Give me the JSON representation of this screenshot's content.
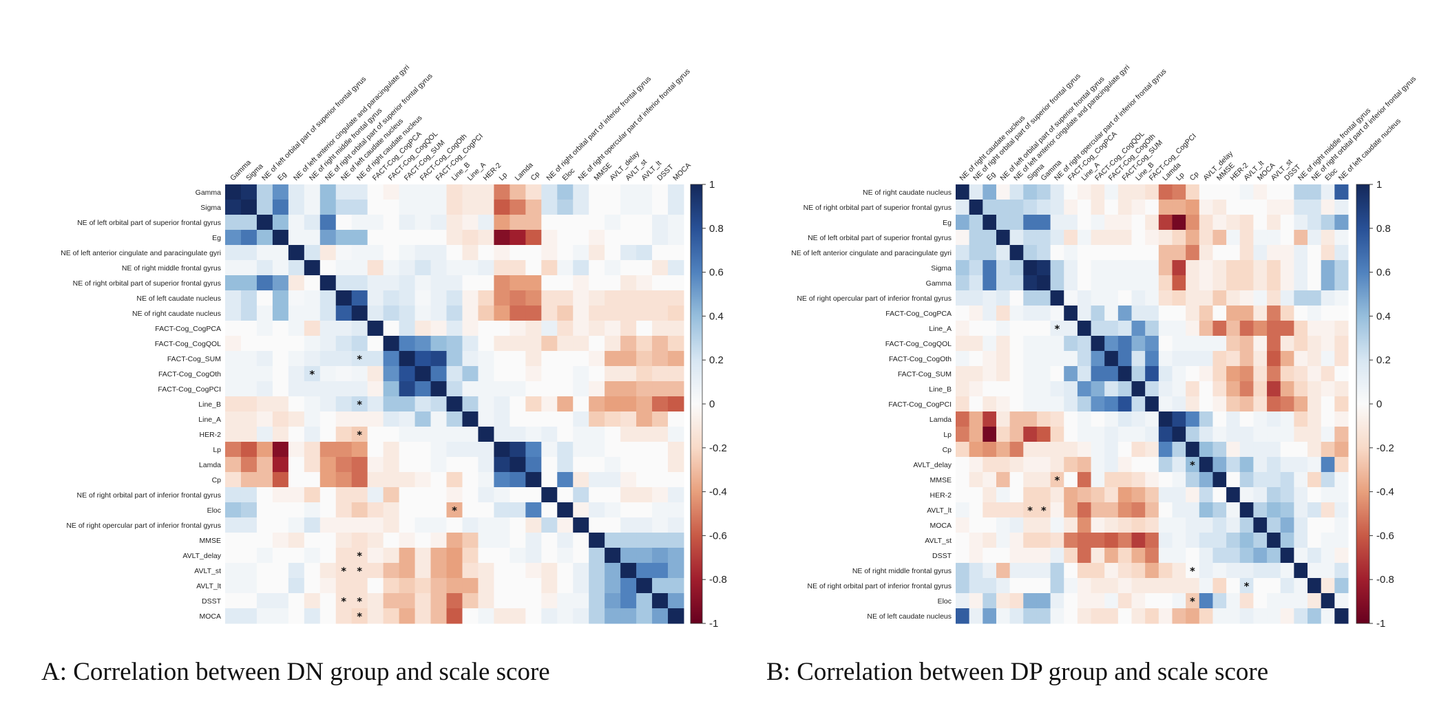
{
  "chart_data": [
    {
      "type": "heatmap",
      "title": "A: Correlation between DN group and scale score",
      "value_range": [
        -1,
        1
      ],
      "colorbar_ticks": [
        "1",
        "0.8",
        "0.6",
        "0.4",
        "0.2",
        "0",
        "-0.2",
        "-0.4",
        "-0.6",
        "-0.8",
        "-1"
      ],
      "labels": [
        "Gamma",
        "Sigma",
        "NE of left orbital part of superior frontal gyrus",
        "Eg",
        "NE of left anterior cingulate and paracingulate gyri",
        "NE of right middle frontal gyrus",
        "NE of right orbital part of superior frontal gyrus",
        "NE of left caudate nucleus",
        "NE of  right caudate nucleus",
        "FACT-Cog_CogPCA",
        "FACT-Cog_CogQOL",
        "FACT-Cog_SUM",
        "FACT-Cog_CogOth",
        "FACT-Cog_CogPCI",
        "Line_B",
        "Line_A",
        "HER-2",
        "Lp",
        "Lamda",
        "Cp",
        "NE of right orbital part of inferior frontal gyrus",
        "Eloc",
        "NE of right opercular part of inferior frontal gyrus",
        "MMSE",
        "AVLT_delay",
        "AVLT_st",
        "AVLT_lt",
        "DSST",
        "MOCA"
      ],
      "lower_triangle": [
        [],
        [
          0.95
        ],
        [
          0.3,
          0.3
        ],
        [
          0.55,
          0.65,
          0.4
        ],
        [
          0.15,
          0.15,
          0.05,
          0.05
        ],
        [
          0.05,
          0.05,
          0.15,
          0.05,
          0.2
        ],
        [
          0.4,
          0.4,
          0.65,
          0.5,
          -0.1,
          0
        ],
        [
          0.15,
          0.25,
          0,
          0.4,
          0.03,
          0.05,
          0.2
        ],
        [
          0.15,
          0.25,
          0.05,
          0.4,
          0.05,
          0.05,
          0.2,
          0.75
        ],
        [
          0,
          0,
          0.05,
          0,
          0.05,
          -0.15,
          0.1,
          0.1,
          0.15
        ],
        [
          -0.05,
          0,
          0,
          0,
          0,
          0.05,
          0.1,
          0.2,
          0.25,
          0
        ],
        [
          0.05,
          0.05,
          0.1,
          0,
          0.05,
          0.1,
          0.15,
          0.15,
          0.2,
          0.2,
          0.6
        ],
        [
          0.05,
          0.05,
          0.05,
          0,
          0.1,
          0.2,
          0.05,
          0.03,
          0.05,
          -0.1,
          0.55,
          0.8
        ],
        [
          0.05,
          0.05,
          0.1,
          0,
          0.1,
          0.1,
          0.1,
          0.1,
          0.1,
          -0.05,
          0.4,
          0.85,
          0.65
        ],
        [
          -0.15,
          -0.15,
          -0.1,
          -0.1,
          0,
          0.05,
          0.1,
          0.2,
          0.25,
          0.15,
          0.35,
          0.35,
          0.2,
          0.25
        ],
        [
          -0.1,
          -0.1,
          -0.05,
          -0.15,
          -0.1,
          0.05,
          0,
          -0.05,
          -0.05,
          -0.05,
          0.15,
          0.1,
          0.35,
          0.05,
          0.3
        ],
        [
          -0.1,
          -0.1,
          0.1,
          -0.1,
          0,
          0.1,
          0,
          -0.2,
          -0.25,
          0,
          0,
          0.05,
          0.05,
          0.05,
          0.05,
          0.05
        ],
        [
          -0.5,
          -0.6,
          -0.4,
          -0.9,
          -0.05,
          -0.15,
          -0.45,
          -0.45,
          -0.4,
          0,
          -0.1,
          0,
          0,
          0.05,
          0.1,
          0.1,
          0.1
        ],
        [
          -0.3,
          -0.5,
          -0.3,
          -0.8,
          0,
          -0.15,
          -0.4,
          -0.5,
          -0.55,
          -0.05,
          -0.1,
          0,
          0,
          0.05,
          0,
          0,
          0.1,
          0.9
        ],
        [
          -0.15,
          -0.3,
          -0.3,
          -0.6,
          0,
          0,
          -0.4,
          -0.45,
          -0.55,
          -0.1,
          -0.1,
          -0.1,
          -0.05,
          0,
          -0.2,
          0,
          0.05,
          0.6,
          0.65
        ],
        [
          0.2,
          0.2,
          0,
          -0.05,
          -0.05,
          -0.2,
          0,
          -0.15,
          -0.15,
          0.1,
          -0.25,
          0,
          0,
          0,
          -0.05,
          0,
          0.1,
          0.05,
          0,
          0
        ],
        [
          0.35,
          0.3,
          0,
          0,
          0,
          0.05,
          0,
          -0.15,
          -0.25,
          -0.15,
          -0.1,
          0,
          0,
          0,
          -0.35,
          0,
          0,
          0.2,
          0.2,
          0.6,
          0
        ],
        [
          0.15,
          0.15,
          0,
          0,
          0.05,
          0.2,
          -0.05,
          -0.05,
          -0.05,
          -0.05,
          -0.1,
          0,
          0.05,
          0.05,
          0,
          0.1,
          0.05,
          0.05,
          0,
          -0.1,
          0.25,
          -0.05
        ],
        [
          0,
          0,
          0,
          -0.05,
          -0.1,
          0,
          0,
          -0.1,
          -0.15,
          -0.1,
          0,
          -0.05,
          0,
          -0.05,
          -0.35,
          -0.25,
          0.05,
          0.05,
          0,
          0.1,
          0,
          0.1,
          0
        ],
        [
          0,
          0,
          0.05,
          0,
          0,
          0.05,
          0,
          -0.15,
          -0.15,
          -0.05,
          -0.1,
          -0.35,
          -0.1,
          -0.35,
          -0.4,
          -0.2,
          0,
          0,
          0.05,
          0.1,
          0,
          0.05,
          0,
          0.3
        ],
        [
          0.05,
          0.05,
          0,
          0,
          0.15,
          0,
          -0.1,
          -0.15,
          -0.15,
          -0.15,
          -0.3,
          -0.35,
          -0.1,
          -0.35,
          -0.4,
          -0.15,
          -0.1,
          0,
          0,
          -0.05,
          -0.1,
          0,
          0.1,
          0.3,
          0.45
        ],
        [
          0.05,
          0.05,
          0,
          0,
          0.2,
          0,
          -0.05,
          -0.15,
          -0.15,
          0,
          -0.2,
          -0.25,
          -0.2,
          -0.3,
          -0.35,
          -0.35,
          -0.1,
          0,
          0,
          0,
          -0.1,
          0,
          0.1,
          0.3,
          0.45,
          0.6
        ],
        [
          0,
          0,
          0.1,
          0.1,
          0,
          -0.1,
          0,
          -0.15,
          -0.15,
          -0.1,
          -0.3,
          -0.3,
          -0.15,
          -0.3,
          -0.55,
          -0.25,
          -0.1,
          0,
          0,
          0,
          -0.05,
          0.05,
          0.05,
          0.3,
          0.5,
          0.6,
          0.35
        ],
        [
          0.15,
          0.15,
          0.05,
          0.05,
          0,
          0.15,
          0,
          -0.15,
          -0.2,
          -0.1,
          -0.2,
          -0.35,
          -0.15,
          -0.3,
          -0.6,
          0,
          0.05,
          -0.1,
          -0.1,
          0,
          0.1,
          0.05,
          0.1,
          0.3,
          0.45,
          0.45,
          0.35,
          0.5
        ]
      ],
      "significance_marks": [
        [
          11,
          8
        ],
        [
          12,
          5
        ],
        [
          14,
          8
        ],
        [
          16,
          8
        ],
        [
          21,
          14
        ],
        [
          24,
          8
        ],
        [
          25,
          7
        ],
        [
          25,
          8
        ],
        [
          27,
          7
        ],
        [
          27,
          8
        ],
        [
          28,
          8
        ]
      ],
      "significance_symbol": "*"
    },
    {
      "type": "heatmap",
      "title": "B: Correlation between DP group and scale score",
      "value_range": [
        -1,
        1
      ],
      "colorbar_ticks": [
        "1",
        "0.8",
        "0.6",
        "0.4",
        "0.2",
        "0",
        "-0.2",
        "-0.4",
        "-0.6",
        "-0.8",
        "-1"
      ],
      "labels": [
        "NE of  right caudate nucleus",
        "NE of right orbital part of superior frontal gyrus",
        "Eg",
        "NE of left orbital part of superior frontal gyrus",
        "NE of left anterior cingulate and paracingulate gyri",
        "Sigma",
        "Gamma",
        "NE of right opercular part of inferior frontal gyrus",
        "FACT-Cog_CogPCA",
        "Line_A",
        "FACT-Cog_CogQOL",
        "FACT-Cog_CogOth",
        "FACT-Cog_SUM",
        "Line_B",
        "FACT-Cog_CogPCI",
        "Lamda",
        "Lp",
        "Cp",
        "AVLT_delay",
        "MMSE",
        "HER-2",
        "AVLT_lt",
        "MOCA",
        "AVLT_st",
        "DSST",
        "NE of right middle frontal gyrus",
        "NE of right orbital part of inferior frontal gyrus",
        "Eloc",
        "NE of left caudate nucleus"
      ],
      "lower_triangle": [
        [],
        [
          0.15
        ],
        [
          0.45,
          0.3
        ],
        [
          -0.03,
          0.3,
          0.3
        ],
        [
          0.2,
          0.3,
          0.3,
          0.15
        ],
        [
          0.35,
          0.25,
          0.65,
          0.25,
          0.3
        ],
        [
          0.3,
          0.2,
          0.65,
          0.25,
          0.25,
          0.95
        ],
        [
          0.15,
          0.15,
          0.1,
          0.15,
          0,
          0.3,
          0.3
        ],
        [
          0,
          -0.05,
          0.1,
          -0.15,
          0.05,
          0.1,
          0.1,
          0.03
        ],
        [
          -0.05,
          0,
          0,
          0.05,
          0,
          0,
          0,
          0.1,
          0.1
        ],
        [
          -0.1,
          -0.1,
          0.05,
          -0.1,
          0,
          0.05,
          0.05,
          0.05,
          0.3,
          0.25
        ],
        [
          0.05,
          0,
          -0.05,
          -0.1,
          0,
          0.05,
          0.05,
          0.05,
          0.05,
          0.25,
          0.55
        ],
        [
          -0.1,
          -0.1,
          -0.05,
          -0.1,
          0,
          0.05,
          0.05,
          0,
          0.5,
          0.2,
          0.65,
          0.65
        ],
        [
          -0.1,
          -0.05,
          0,
          0,
          0,
          0.05,
          0.05,
          0.1,
          0.15,
          0.55,
          0.45,
          0.2,
          0.3
        ],
        [
          -0.15,
          0,
          -0.1,
          -0.05,
          0,
          0.05,
          0.05,
          0.05,
          0.15,
          0.3,
          0.55,
          0.6,
          0.8,
          0.25
        ],
        [
          -0.55,
          -0.35,
          -0.7,
          -0.1,
          -0.3,
          -0.3,
          -0.2,
          -0.15,
          0,
          0.05,
          0,
          0.05,
          0.15,
          0.1,
          0.05
        ],
        [
          -0.5,
          -0.35,
          -0.95,
          -0.2,
          -0.3,
          -0.7,
          -0.6,
          -0.2,
          0,
          0.05,
          0.05,
          0.1,
          0.05,
          0.05,
          0.1,
          0.85
        ],
        [
          -0.2,
          -0.4,
          -0.45,
          -0.35,
          -0.5,
          -0.1,
          -0.1,
          -0.1,
          -0.1,
          -0.05,
          0.05,
          0.1,
          0,
          -0.15,
          -0.1,
          0.6,
          0.3
        ],
        [
          0,
          -0.05,
          -0.15,
          -0.15,
          -0.1,
          -0.05,
          -0.05,
          -0.1,
          -0.25,
          -0.3,
          0.05,
          0.1,
          -0.05,
          0,
          0,
          0.3,
          0.15,
          0.4
        ],
        [
          0,
          -0.1,
          -0.05,
          -0.3,
          0,
          -0.1,
          -0.1,
          -0.25,
          0,
          -0.55,
          0.05,
          -0.2,
          -0.2,
          -0.15,
          -0.05,
          0,
          0.05,
          0.3,
          0.45
        ],
        [
          0,
          0,
          -0.1,
          0.05,
          0,
          -0.2,
          -0.2,
          -0.1,
          -0.35,
          -0.3,
          -0.25,
          -0.15,
          -0.4,
          -0.35,
          -0.25,
          0.1,
          0.1,
          -0.05,
          0.25,
          0
        ],
        [
          0.05,
          0,
          -0.15,
          -0.15,
          -0.15,
          -0.2,
          -0.2,
          -0.05,
          -0.35,
          -0.55,
          -0.3,
          -0.3,
          -0.45,
          -0.5,
          -0.3,
          0,
          0.1,
          0.1,
          0.4,
          0.3,
          0.05
        ],
        [
          -0.05,
          0,
          0,
          0.05,
          0.1,
          -0.1,
          -0.1,
          0.05,
          -0.1,
          -0.45,
          -0.05,
          -0.1,
          -0.15,
          -0.2,
          -0.15,
          0.05,
          0.05,
          0.1,
          0.1,
          0.2,
          0.1,
          0.3
        ],
        [
          0,
          -0.05,
          -0.1,
          0.05,
          -0.05,
          -0.2,
          -0.2,
          -0.15,
          -0.5,
          -0.55,
          -0.55,
          -0.6,
          -0.5,
          -0.7,
          -0.55,
          0.1,
          0.05,
          0.1,
          0.2,
          0.2,
          0.3,
          0.4,
          0.3
        ],
        [
          0,
          -0.05,
          0,
          0,
          -0.05,
          -0.05,
          -0.05,
          0.1,
          -0.2,
          -0.55,
          -0.1,
          -0.35,
          -0.2,
          -0.35,
          -0.5,
          0.05,
          0.05,
          0,
          0.1,
          0.25,
          0.25,
          0.35,
          0.45,
          0.35
        ],
        [
          0.3,
          0.2,
          0.1,
          -0.3,
          0.1,
          0.1,
          0.1,
          0.3,
          0,
          -0.2,
          -0.2,
          -0.05,
          -0.15,
          -0.2,
          -0.35,
          -0.2,
          -0.1,
          0,
          0.1,
          0.05,
          0.1,
          0.1,
          0.15,
          0.15,
          0.05
        ],
        [
          0.3,
          0.2,
          0.2,
          0.1,
          0,
          0,
          0,
          0.3,
          0.05,
          -0.05,
          -0.1,
          -0.1,
          -0.05,
          -0.1,
          -0.1,
          -0.1,
          -0.1,
          -0.1,
          0.05,
          -0.2,
          0,
          0.2,
          0,
          0,
          0.15,
          0.05
        ],
        [
          0.1,
          -0.05,
          0.3,
          -0.1,
          -0.15,
          0.45,
          0.45,
          0.1,
          0,
          -0.05,
          -0.05,
          0.05,
          -0.15,
          -0.05,
          0,
          0,
          0.05,
          -0.25,
          0.6,
          0.25,
          0.05,
          -0.15,
          0,
          0.05,
          0.05,
          0.05,
          -0.1
        ],
        [
          0.75,
          0.1,
          0.5,
          0.05,
          0.15,
          0.3,
          0.3,
          0.05,
          0,
          -0.1,
          -0.15,
          -0.15,
          0,
          -0.1,
          -0.2,
          -0.05,
          -0.3,
          -0.35,
          -0.2,
          0.05,
          0.05,
          0.1,
          0.05,
          0.05,
          -0.05,
          0.2,
          0.35,
          0.05
        ]
      ],
      "significance_marks": [
        [
          9,
          7
        ],
        [
          19,
          7
        ],
        [
          21,
          5
        ],
        [
          21,
          6
        ],
        [
          18,
          17
        ],
        [
          25,
          17
        ],
        [
          26,
          21
        ],
        [
          27,
          17
        ]
      ],
      "significance_symbol": "*"
    }
  ]
}
